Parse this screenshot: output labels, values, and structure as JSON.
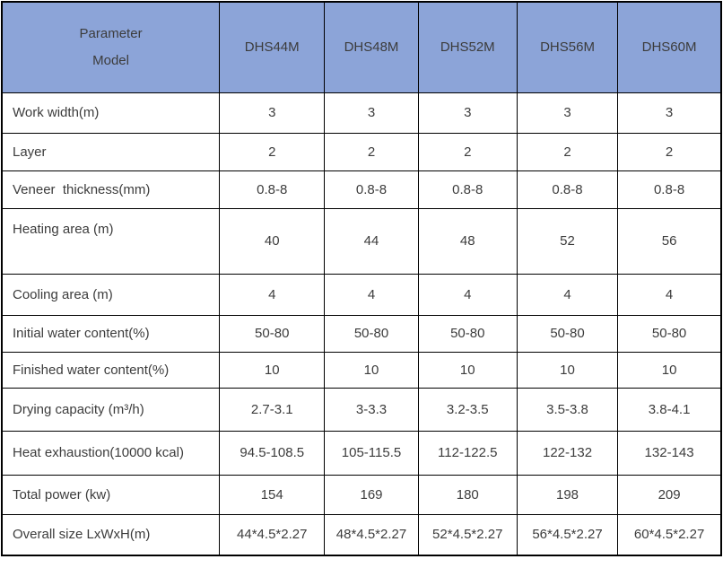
{
  "table": {
    "corner": {
      "line1": "Parameter",
      "line2": "Model"
    },
    "models": [
      "DHS44M",
      "DHS48M",
      "DHS52M",
      "DHS56M",
      "DHS60M"
    ],
    "rows": [
      {
        "label": "Work width(m)",
        "values": [
          "3",
          "3",
          "3",
          "3",
          "3"
        ]
      },
      {
        "label": "Layer",
        "values": [
          "2",
          "2",
          "2",
          "2",
          "2"
        ]
      },
      {
        "label": "Veneer  thickness(mm)",
        "values": [
          "0.8-8",
          "0.8-8",
          "0.8-8",
          "0.8-8",
          "0.8-8"
        ]
      },
      {
        "label": "Heating area (m)",
        "values": [
          "40",
          "44",
          "48",
          "52",
          "56"
        ]
      },
      {
        "label": "Cooling area (m)",
        "values": [
          "4",
          "4",
          "4",
          "4",
          "4"
        ]
      },
      {
        "label": "Initial water content(%)",
        "values": [
          "50-80",
          "50-80",
          "50-80",
          "50-80",
          "50-80"
        ]
      },
      {
        "label": "Finished water content(%)",
        "values": [
          "10",
          "10",
          "10",
          "10",
          "10"
        ]
      },
      {
        "label": "Drying capacity (m³/h)",
        "values": [
          "2.7-3.1",
          "3-3.3",
          "3.2-3.5",
          "3.5-3.8",
          "3.8-4.1"
        ]
      },
      {
        "label": "Heat exhaustion(10000 kcal)",
        "values": [
          "94.5-108.5",
          "105-115.5",
          "112-122.5",
          "122-132",
          "132-143"
        ]
      },
      {
        "label": "Total power (kw)",
        "values": [
          "154",
          "169",
          "180",
          "198",
          "209"
        ]
      },
      {
        "label": "Overall size LxWxH(m)",
        "values": [
          "44*4.5*2.27",
          "48*4.5*2.27",
          "52*4.5*2.27",
          "56*4.5*2.27",
          "60*4.5*2.27"
        ]
      }
    ]
  },
  "colors": {
    "header_bg": "#8CA4D8",
    "border": "#000000",
    "text": "#3C3C3C",
    "cell_bg": "#FFFFFF"
  }
}
